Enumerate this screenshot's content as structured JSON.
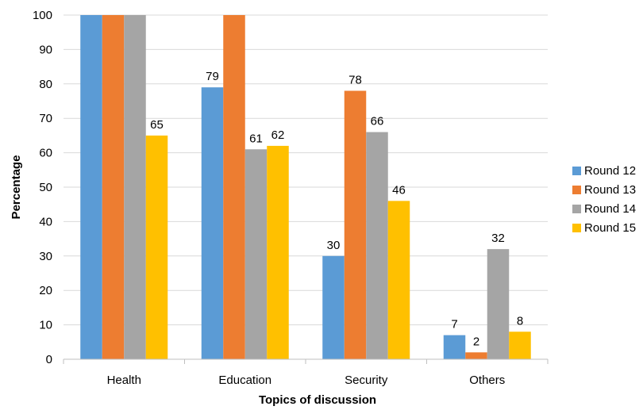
{
  "chart_data": {
    "type": "bar",
    "title": "",
    "xlabel": "Topics of discussion",
    "ylabel": "Percentage",
    "categories": [
      "Health",
      "Education",
      "Security",
      "Others"
    ],
    "ylim": [
      0,
      100
    ],
    "yticks": [
      0,
      10,
      20,
      30,
      40,
      50,
      60,
      70,
      80,
      90,
      100
    ],
    "grid": true,
    "legend_position": "right",
    "series": [
      {
        "name": "Round 12",
        "color": "#5b9bd5",
        "values": [
          100,
          79,
          30,
          7
        ],
        "labels": [
          "",
          "79",
          "30",
          "7"
        ]
      },
      {
        "name": "Round 13",
        "color": "#ed7d31",
        "values": [
          100,
          100,
          78,
          2
        ],
        "labels": [
          "",
          "",
          "78",
          "2"
        ]
      },
      {
        "name": "Round 14",
        "color": "#a5a5a5",
        "values": [
          100,
          61,
          66,
          32
        ],
        "labels": [
          "",
          "61",
          "66",
          "32"
        ]
      },
      {
        "name": "Round 15",
        "color": "#ffc000",
        "values": [
          65,
          62,
          46,
          8
        ],
        "labels": [
          "65",
          "62",
          "46",
          "8"
        ]
      }
    ]
  }
}
